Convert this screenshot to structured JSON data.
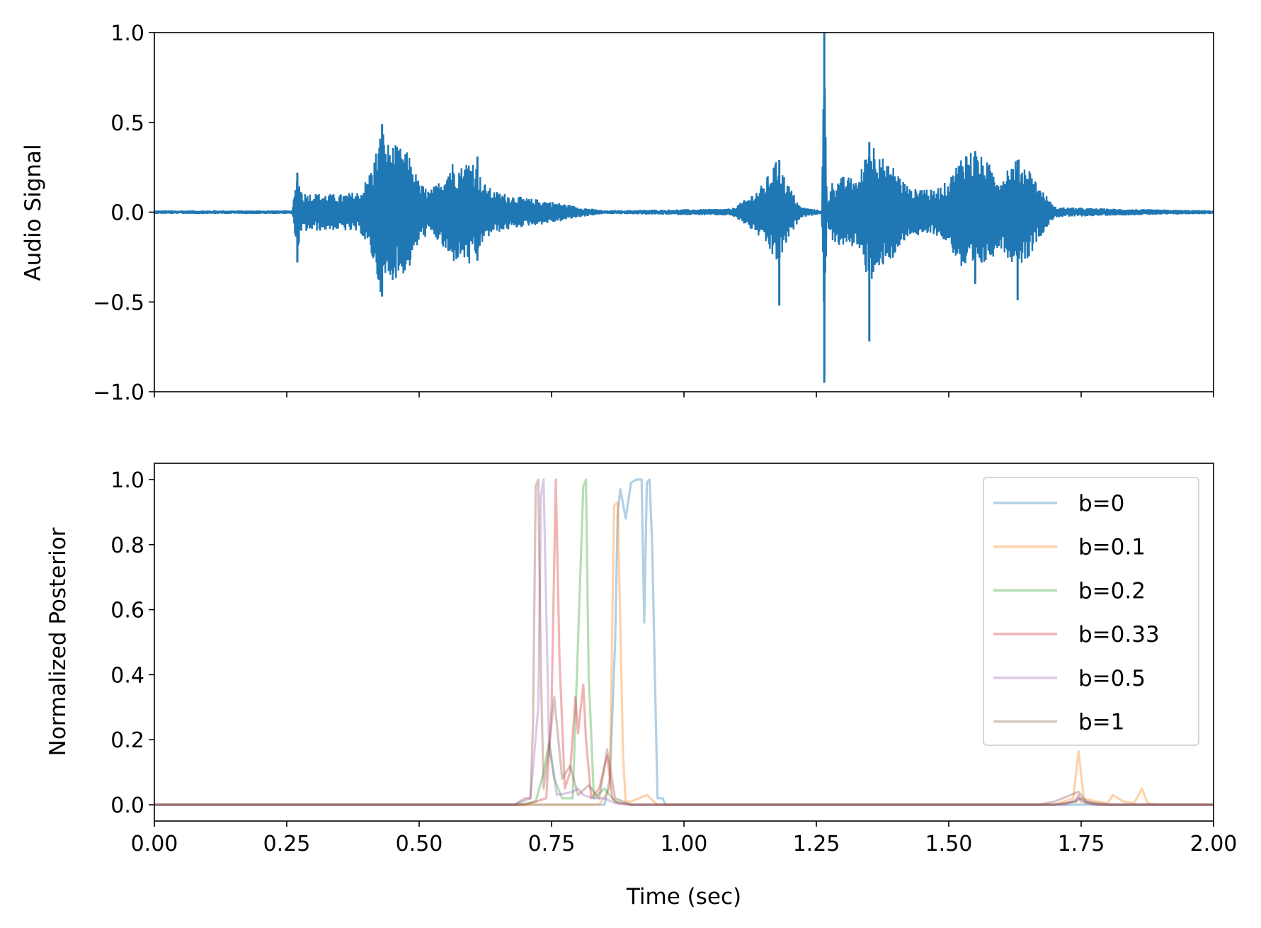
{
  "chart_data": [
    {
      "type": "line",
      "title": "",
      "xlabel": "",
      "ylabel": "Audio Signal",
      "xlim": [
        0,
        2
      ],
      "ylim": [
        -1,
        1
      ],
      "xticks": [
        0,
        0.25,
        0.5,
        0.75,
        1.0,
        1.25,
        1.5,
        1.75,
        2.0
      ],
      "show_xtick_labels": false,
      "yticks": [
        -1.0,
        -0.5,
        0.0,
        0.5,
        1.0
      ],
      "ytick_labels": [
        "−1.0",
        "−0.5",
        "0.0",
        "0.5",
        "1.0"
      ],
      "grid": false,
      "color": "#1f77b4",
      "envelope": {
        "t": [
          0.0,
          0.26,
          0.27,
          0.28,
          0.35,
          0.39,
          0.41,
          0.43,
          0.44,
          0.46,
          0.48,
          0.5,
          0.52,
          0.54,
          0.56,
          0.58,
          0.6,
          0.62,
          0.64,
          0.67,
          0.7,
          0.73,
          0.77,
          0.8,
          0.85,
          1.09,
          1.12,
          1.15,
          1.17,
          1.18,
          1.19,
          1.22,
          1.26,
          1.265,
          1.27,
          1.28,
          1.3,
          1.33,
          1.35,
          1.37,
          1.38,
          1.39,
          1.41,
          1.43,
          1.45,
          1.47,
          1.5,
          1.52,
          1.53,
          1.55,
          1.57,
          1.6,
          1.61,
          1.63,
          1.65,
          1.67,
          1.7,
          1.8,
          2.0
        ],
        "amp": [
          0.01,
          0.01,
          0.22,
          0.11,
          0.1,
          0.12,
          0.25,
          0.48,
          0.39,
          0.37,
          0.33,
          0.17,
          0.12,
          0.18,
          0.29,
          0.26,
          0.32,
          0.17,
          0.12,
          0.1,
          0.08,
          0.07,
          0.05,
          0.03,
          0.01,
          0.02,
          0.08,
          0.16,
          0.27,
          0.3,
          0.2,
          0.03,
          0.01,
          1.0,
          0.06,
          0.17,
          0.2,
          0.19,
          0.4,
          0.38,
          0.25,
          0.28,
          0.2,
          0.12,
          0.15,
          0.12,
          0.18,
          0.3,
          0.36,
          0.34,
          0.29,
          0.2,
          0.26,
          0.3,
          0.26,
          0.15,
          0.03,
          0.02,
          0.01
        ]
      },
      "peaks": [
        {
          "t": 0.27,
          "max": 0.22,
          "min": -0.28
        },
        {
          "t": 0.43,
          "max": 0.49,
          "min": -0.47
        },
        {
          "t": 0.61,
          "max": 0.31,
          "min": -0.27
        },
        {
          "t": 1.18,
          "max": 0.29,
          "min": -0.52
        },
        {
          "t": 1.265,
          "max": 1.0,
          "min": -0.95
        },
        {
          "t": 1.35,
          "max": 0.39,
          "min": -0.72
        },
        {
          "t": 1.55,
          "max": 0.34,
          "min": -0.4
        },
        {
          "t": 1.63,
          "max": 0.29,
          "min": -0.49
        }
      ]
    },
    {
      "type": "line",
      "title": "",
      "xlabel": "Time (sec)",
      "ylabel": "Normalized Posterior",
      "xlim": [
        0,
        2
      ],
      "ylim": [
        -0.05,
        1.05
      ],
      "xticks": [
        0,
        0.25,
        0.5,
        0.75,
        1.0,
        1.25,
        1.5,
        1.75,
        2.0
      ],
      "xtick_labels": [
        "0.00",
        "0.25",
        "0.50",
        "0.75",
        "1.00",
        "1.25",
        "1.50",
        "1.75",
        "2.00"
      ],
      "yticks": [
        0.0,
        0.2,
        0.4,
        0.6,
        0.8,
        1.0
      ],
      "ytick_labels": [
        "0.0",
        "0.2",
        "0.4",
        "0.6",
        "0.8",
        "1.0"
      ],
      "grid": false,
      "legend": "top-right",
      "line_alpha": 0.35,
      "series": [
        {
          "name": "b=0",
          "color": "#1f77b4",
          "x": [
            0,
            0.7,
            0.85,
            0.86,
            0.87,
            0.875,
            0.88,
            0.89,
            0.9,
            0.91,
            0.92,
            0.925,
            0.93,
            0.935,
            0.94,
            0.95,
            0.96,
            0.965,
            1.0,
            2.0
          ],
          "y": [
            0,
            0,
            0,
            0.08,
            0.5,
            0.9,
            0.97,
            0.88,
            0.99,
            1.0,
            1.0,
            0.56,
            0.99,
            1.0,
            0.8,
            0.02,
            0.02,
            0,
            0,
            0
          ]
        },
        {
          "name": "b=0.1",
          "color": "#ff7f0e",
          "x": [
            0,
            0.7,
            0.78,
            0.84,
            0.86,
            0.868,
            0.875,
            0.88,
            0.885,
            0.89,
            0.9,
            0.93,
            0.95,
            1.0,
            1.7,
            1.735,
            1.745,
            1.755,
            1.78,
            1.8,
            1.81,
            1.83,
            1.85,
            1.865,
            1.875,
            1.9,
            2.0
          ],
          "y": [
            0,
            0,
            0,
            0,
            0.05,
            0.92,
            0.93,
            0.55,
            0.15,
            0.01,
            0.01,
            0.03,
            0,
            0,
            0,
            0.02,
            0.165,
            0.02,
            0.01,
            0.005,
            0.03,
            0.01,
            0.005,
            0.05,
            0.005,
            0,
            0
          ]
        },
        {
          "name": "b=0.2",
          "color": "#2ca02c",
          "x": [
            0,
            0.69,
            0.72,
            0.735,
            0.745,
            0.755,
            0.77,
            0.79,
            0.8,
            0.81,
            0.815,
            0.82,
            0.83,
            0.85,
            0.87,
            0.9,
            1.7,
            1.74,
            1.75,
            1.76,
            1.8,
            2.0
          ],
          "y": [
            0,
            0,
            0.01,
            0.1,
            0.19,
            0.08,
            0.02,
            0.02,
            0.5,
            0.98,
            1.0,
            0.4,
            0.02,
            0.05,
            0.01,
            0,
            0,
            0.01,
            0.02,
            0.005,
            0,
            0
          ]
        },
        {
          "name": "b=0.33",
          "color": "#d62728",
          "x": [
            0,
            0.7,
            0.74,
            0.75,
            0.758,
            0.765,
            0.775,
            0.785,
            0.795,
            0.8,
            0.81,
            0.815,
            0.825,
            0.84,
            0.855,
            0.865,
            0.875,
            0.9,
            1.7,
            1.74,
            1.745,
            1.75,
            1.78,
            2.0
          ],
          "y": [
            0,
            0,
            0.02,
            0.3,
            1.0,
            0.45,
            0.05,
            0.1,
            0.33,
            0.22,
            0.37,
            0.2,
            0.02,
            0.05,
            0.15,
            0.02,
            0.005,
            0,
            0,
            0.01,
            0.03,
            0.01,
            0,
            0
          ]
        },
        {
          "name": "b=0.5",
          "color": "#9467bd",
          "x": [
            0,
            0.68,
            0.71,
            0.725,
            0.73,
            0.735,
            0.745,
            0.76,
            0.79,
            0.8,
            0.81,
            0.83,
            0.85,
            0.87,
            0.9,
            1.72,
            1.745,
            1.78,
            2.0
          ],
          "y": [
            0,
            0,
            0.02,
            0.3,
            0.95,
            1.0,
            0.2,
            0.03,
            0.04,
            0.05,
            0.03,
            0.02,
            0.02,
            0.005,
            0,
            0,
            0.02,
            0,
            0
          ]
        },
        {
          "name": "b=1",
          "color": "#8c564b",
          "x": [
            0,
            0.68,
            0.7,
            0.71,
            0.715,
            0.72,
            0.725,
            0.73,
            0.735,
            0.745,
            0.755,
            0.77,
            0.785,
            0.8,
            0.82,
            0.84,
            0.855,
            0.87,
            0.9,
            1.67,
            1.7,
            1.745,
            1.76,
            1.8,
            2.0
          ],
          "y": [
            0,
            0,
            0.02,
            0.02,
            0.25,
            0.98,
            1.0,
            0.4,
            0.05,
            0.17,
            0.33,
            0.08,
            0.12,
            0.03,
            0.06,
            0.02,
            0.17,
            0.02,
            0,
            0,
            0.01,
            0.04,
            0.01,
            0,
            0
          ]
        }
      ]
    }
  ]
}
